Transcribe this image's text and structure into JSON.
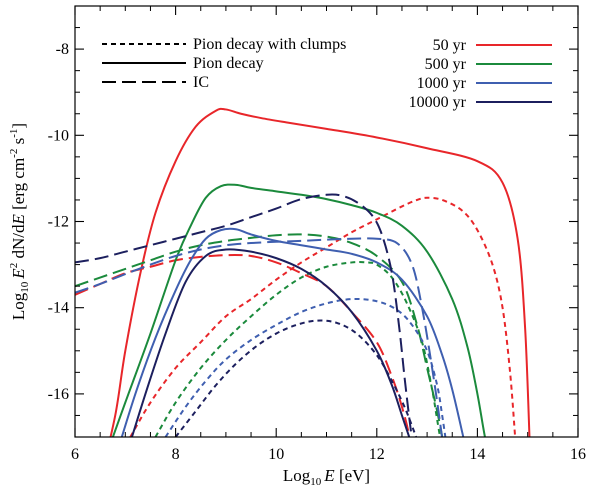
{
  "chart_data": {
    "type": "line",
    "xlabel": {
      "prefix": "Log",
      "sub": "10",
      "var": "E",
      "unit": " [eV]"
    },
    "ylabel": {
      "prefix": "Log",
      "sub": "10",
      "var_a": "E",
      "sup_a": "2",
      "mid": " dN/d",
      "var_b": "E",
      "unit_a": " [erg cm",
      "sup_b": "-2",
      "unit_b": " s",
      "sup_c": "-1",
      "unit_c": "]"
    },
    "xlim": [
      6,
      16
    ],
    "ylim": [
      -17,
      -7
    ],
    "xticks": [
      6,
      8,
      10,
      12,
      14,
      16
    ],
    "yticks": [
      -16,
      -14,
      -12,
      -10,
      -8
    ],
    "grid": false,
    "legend_styles": [
      {
        "label": "Pion decay with clumps",
        "dash": "short"
      },
      {
        "label": "Pion decay",
        "dash": "solid"
      },
      {
        "label": "IC",
        "dash": "long"
      }
    ],
    "legend_ages": [
      {
        "label": "50 yr",
        "color": "#e8262a"
      },
      {
        "label": "500 yr",
        "color": "#1b8a3c"
      },
      {
        "label": "1000 yr",
        "color": "#3f5fb0"
      },
      {
        "label": "10000 yr",
        "color": "#1c1f5e"
      }
    ],
    "series": [
      {
        "age": "50 yr",
        "component": "Pion decay",
        "color": "#e8262a",
        "dash": "solid",
        "x": [
          6.5,
          6.8,
          7.0,
          7.3,
          7.6,
          8.0,
          8.4,
          8.8,
          9.0,
          9.3,
          9.7,
          10.2,
          11.0,
          12.0,
          13.0,
          14.0,
          14.5,
          14.8,
          14.95,
          15.05
        ],
        "y": [
          -18.0,
          -16.5,
          -15.0,
          -13.2,
          -11.8,
          -10.6,
          -9.8,
          -9.43,
          -9.4,
          -9.5,
          -9.6,
          -9.7,
          -9.85,
          -10.05,
          -10.3,
          -10.6,
          -11.1,
          -12.4,
          -14.5,
          -17.5
        ]
      },
      {
        "age": "50 yr",
        "component": "Pion decay with clumps",
        "color": "#e8262a",
        "dash": "short",
        "x": [
          7.1,
          7.5,
          8.0,
          8.5,
          9.0,
          9.5,
          10.0,
          10.5,
          11.0,
          11.5,
          12.0,
          12.5,
          12.8,
          13.0,
          13.3,
          13.7,
          14.0,
          14.3,
          14.5,
          14.65,
          14.75
        ],
        "y": [
          -17.0,
          -16.2,
          -15.4,
          -14.8,
          -14.2,
          -13.8,
          -13.35,
          -12.95,
          -12.6,
          -12.25,
          -11.95,
          -11.65,
          -11.5,
          -11.45,
          -11.5,
          -11.75,
          -12.2,
          -13.0,
          -14.0,
          -15.5,
          -17.0
        ]
      },
      {
        "age": "50 yr",
        "component": "IC",
        "color": "#e8262a",
        "dash": "long",
        "x": [
          6.0,
          6.5,
          7.0,
          7.5,
          8.0,
          8.5,
          9.0,
          9.5,
          10.0,
          10.5,
          11.0,
          11.5,
          12.0,
          12.3,
          12.5,
          12.65,
          12.75
        ],
        "y": [
          -13.7,
          -13.45,
          -13.2,
          -13.05,
          -12.9,
          -12.82,
          -12.78,
          -12.8,
          -12.95,
          -13.2,
          -13.5,
          -14.1,
          -14.8,
          -15.6,
          -16.3,
          -17.0,
          -17.8
        ]
      },
      {
        "age": "500 yr",
        "component": "Pion decay",
        "color": "#1b8a3c",
        "dash": "solid",
        "x": [
          6.6,
          7.0,
          7.5,
          8.0,
          8.3,
          8.6,
          8.9,
          9.2,
          9.5,
          10.0,
          10.5,
          11.0,
          11.5,
          12.0,
          12.5,
          13.0,
          13.5,
          13.8,
          14.0,
          14.15,
          14.3
        ],
        "y": [
          -17.5,
          -16.2,
          -14.6,
          -12.9,
          -12.1,
          -11.45,
          -11.18,
          -11.15,
          -11.22,
          -11.3,
          -11.38,
          -11.48,
          -11.62,
          -11.8,
          -12.1,
          -12.7,
          -13.8,
          -14.9,
          -16.0,
          -17.0,
          -17.8
        ]
      },
      {
        "age": "500 yr",
        "component": "Pion decay with clumps",
        "color": "#1b8a3c",
        "dash": "short",
        "x": [
          7.6,
          8.0,
          8.5,
          9.0,
          9.5,
          10.0,
          10.5,
          11.0,
          11.5,
          11.8,
          12.0,
          12.3,
          12.6,
          12.9,
          13.1,
          13.2,
          13.3
        ],
        "y": [
          -17.0,
          -16.2,
          -15.4,
          -14.75,
          -14.2,
          -13.7,
          -13.3,
          -13.05,
          -12.95,
          -12.95,
          -13.0,
          -13.3,
          -13.9,
          -14.8,
          -15.9,
          -16.6,
          -17.3
        ]
      },
      {
        "age": "500 yr",
        "component": "IC",
        "color": "#1b8a3c",
        "dash": "long",
        "x": [
          6.0,
          6.5,
          7.0,
          7.5,
          8.0,
          8.5,
          9.0,
          9.5,
          10.0,
          10.5,
          11.0,
          11.5,
          12.0,
          12.5,
          12.8,
          13.0,
          13.2,
          13.35
        ],
        "y": [
          -13.5,
          -13.3,
          -13.1,
          -12.9,
          -12.7,
          -12.55,
          -12.45,
          -12.38,
          -12.32,
          -12.3,
          -12.35,
          -12.5,
          -12.8,
          -13.4,
          -14.4,
          -15.4,
          -16.4,
          -17.3
        ]
      },
      {
        "age": "1000 yr",
        "component": "Pion decay",
        "color": "#3f5fb0",
        "dash": "solid",
        "x": [
          6.8,
          7.2,
          7.6,
          8.0,
          8.3,
          8.6,
          8.9,
          9.2,
          9.5,
          10.0,
          10.5,
          11.0,
          11.5,
          12.0,
          12.5,
          13.0,
          13.3,
          13.5,
          13.7,
          13.85
        ],
        "y": [
          -17.5,
          -16.0,
          -14.7,
          -13.6,
          -12.9,
          -12.4,
          -12.2,
          -12.18,
          -12.3,
          -12.45,
          -12.55,
          -12.65,
          -12.75,
          -12.95,
          -13.35,
          -14.2,
          -15.1,
          -15.9,
          -16.9,
          -17.7
        ]
      },
      {
        "age": "1000 yr",
        "component": "Pion decay with clumps",
        "color": "#3f5fb0",
        "dash": "short",
        "x": [
          7.8,
          8.2,
          8.6,
          9.0,
          9.5,
          10.0,
          10.5,
          11.0,
          11.5,
          12.0,
          12.4,
          12.7,
          13.0,
          13.2,
          13.3,
          13.4
        ],
        "y": [
          -17.0,
          -16.3,
          -15.7,
          -15.2,
          -14.75,
          -14.4,
          -14.1,
          -13.9,
          -13.8,
          -13.85,
          -14.05,
          -14.4,
          -15.0,
          -15.8,
          -16.5,
          -17.3
        ]
      },
      {
        "age": "1000 yr",
        "component": "IC",
        "color": "#3f5fb0",
        "dash": "long",
        "x": [
          6.0,
          6.5,
          7.0,
          7.5,
          8.0,
          8.5,
          9.0,
          9.5,
          10.0,
          10.5,
          11.0,
          11.5,
          12.0,
          12.4,
          12.7,
          12.9,
          13.1,
          13.25,
          13.35
        ],
        "y": [
          -13.65,
          -13.45,
          -13.22,
          -13.0,
          -12.8,
          -12.65,
          -12.55,
          -12.5,
          -12.47,
          -12.45,
          -12.42,
          -12.4,
          -12.4,
          -12.5,
          -13.0,
          -14.0,
          -15.4,
          -16.6,
          -17.5
        ]
      },
      {
        "age": "10000 yr",
        "component": "Pion decay",
        "color": "#1c1f5e",
        "dash": "solid",
        "x": [
          7.0,
          7.4,
          7.8,
          8.2,
          8.6,
          9.0,
          9.5,
          10.0,
          10.5,
          11.0,
          11.5,
          12.0,
          12.3,
          12.5,
          12.7,
          12.85
        ],
        "y": [
          -17.5,
          -16.0,
          -14.6,
          -13.4,
          -12.8,
          -12.65,
          -12.7,
          -12.85,
          -13.1,
          -13.5,
          -14.1,
          -15.0,
          -15.8,
          -16.5,
          -17.2,
          -17.8
        ]
      },
      {
        "age": "10000 yr",
        "component": "Pion decay with clumps",
        "color": "#1c1f5e",
        "dash": "short",
        "x": [
          8.0,
          8.4,
          8.8,
          9.2,
          9.6,
          10.0,
          10.4,
          10.8,
          11.2,
          11.6,
          12.0,
          12.3,
          12.55,
          12.75,
          12.9
        ],
        "y": [
          -17.0,
          -16.4,
          -15.8,
          -15.3,
          -14.9,
          -14.6,
          -14.4,
          -14.3,
          -14.35,
          -14.6,
          -15.1,
          -15.7,
          -16.3,
          -16.9,
          -17.4
        ]
      },
      {
        "age": "10000 yr",
        "component": "IC",
        "color": "#1c1f5e",
        "dash": "long",
        "x": [
          6.0,
          6.5,
          7.0,
          7.5,
          8.0,
          8.5,
          9.0,
          9.5,
          10.0,
          10.5,
          11.0,
          11.3,
          11.6,
          11.9,
          12.1,
          12.3,
          12.45,
          12.55,
          12.65,
          12.75
        ],
        "y": [
          -12.95,
          -12.85,
          -12.7,
          -12.55,
          -12.4,
          -12.25,
          -12.1,
          -11.9,
          -11.7,
          -11.48,
          -11.38,
          -11.4,
          -11.55,
          -11.85,
          -12.3,
          -13.2,
          -14.5,
          -15.6,
          -16.6,
          -17.5
        ]
      }
    ]
  }
}
